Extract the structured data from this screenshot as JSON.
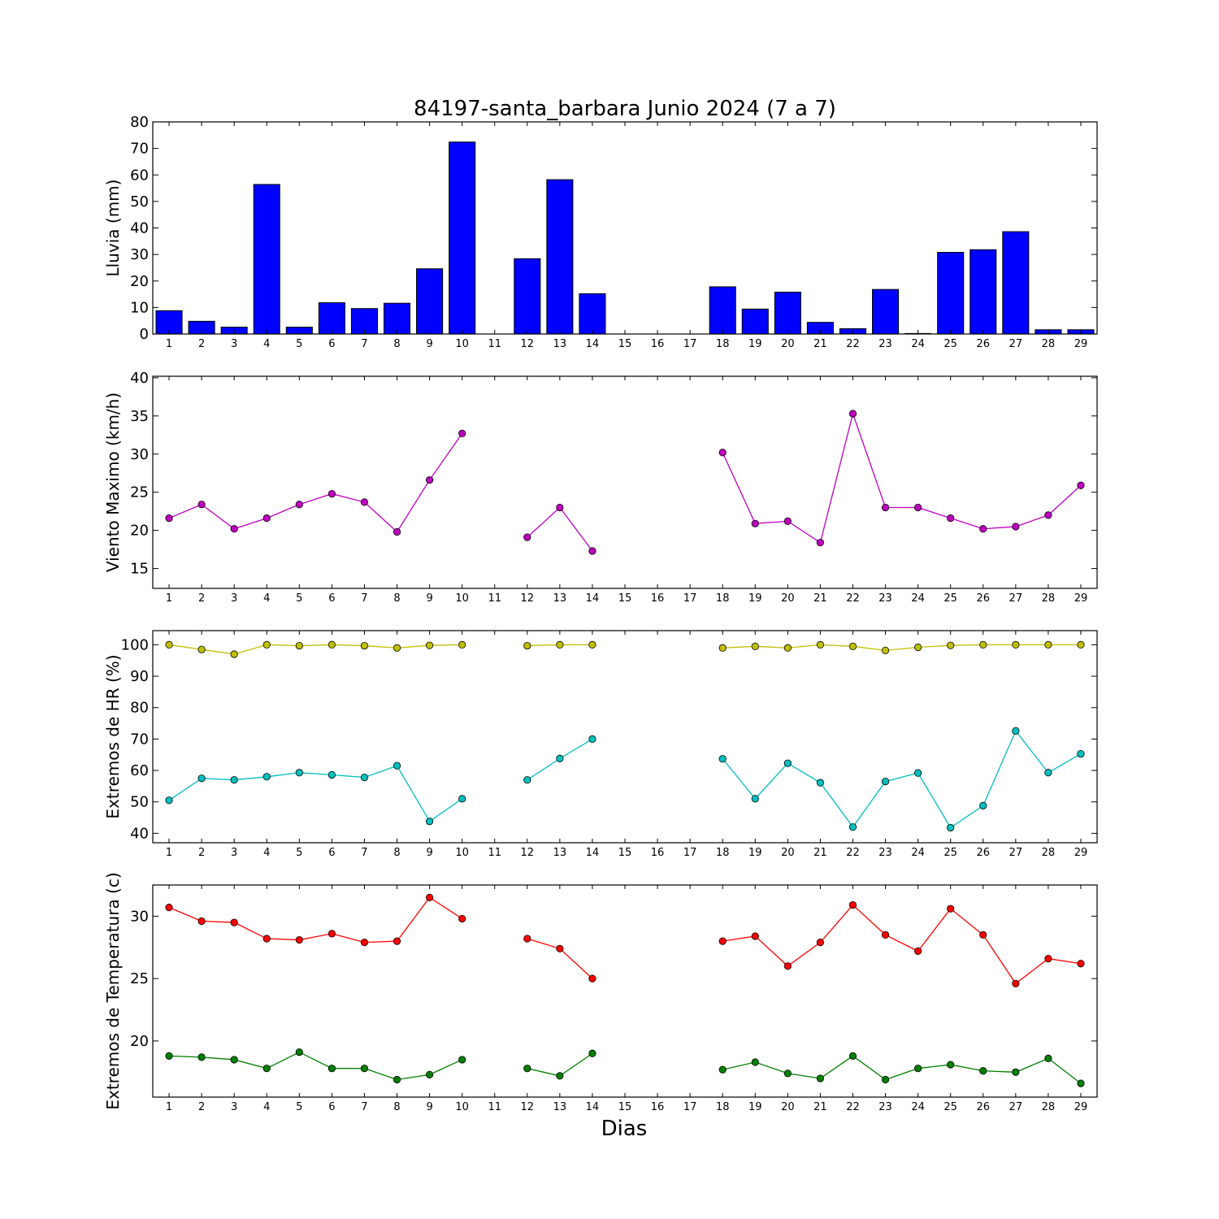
{
  "figure": {
    "title": "84197-santa_barbara Junio 2024  (7 a 7)",
    "xlabel": "Dias"
  },
  "chart_data": [
    {
      "type": "bar",
      "ylabel": "Lluvia (mm)",
      "x": [
        1,
        2,
        3,
        4,
        5,
        6,
        7,
        8,
        9,
        10,
        11,
        12,
        13,
        14,
        15,
        16,
        17,
        18,
        19,
        20,
        21,
        22,
        23,
        24,
        25,
        26,
        27,
        28,
        29
      ],
      "ylim": [
        0,
        80
      ],
      "yticks": [
        0,
        10,
        20,
        30,
        40,
        50,
        60,
        70,
        80
      ],
      "series": [
        {
          "color": "#0000ff",
          "values": [
            8.8,
            4.8,
            2.6,
            56.4,
            2.6,
            11.8,
            9.6,
            11.6,
            24.6,
            72.4,
            null,
            28.4,
            58.2,
            15.2,
            null,
            null,
            null,
            17.8,
            9.4,
            15.8,
            4.4,
            2.0,
            16.8,
            0.2,
            30.8,
            31.8,
            38.6,
            1.6,
            1.6
          ]
        }
      ]
    },
    {
      "type": "line",
      "ylabel": "Viento Maximo (km/h)",
      "x": [
        1,
        2,
        3,
        4,
        5,
        6,
        7,
        8,
        9,
        10,
        11,
        12,
        13,
        14,
        15,
        16,
        17,
        18,
        19,
        20,
        21,
        22,
        23,
        24,
        25,
        26,
        27,
        28,
        29
      ],
      "ylim": [
        12.4,
        40.2
      ],
      "yticks": [
        15,
        20,
        25,
        30,
        35,
        40
      ],
      "series": [
        {
          "color": "#bf00bf",
          "values": [
            21.6,
            23.4,
            20.2,
            21.6,
            23.4,
            24.8,
            23.7,
            19.8,
            26.6,
            32.7,
            null,
            19.1,
            23.0,
            17.3,
            null,
            null,
            null,
            30.2,
            20.9,
            21.2,
            18.4,
            35.3,
            23.0,
            23.0,
            21.6,
            20.2,
            20.5,
            22.0,
            25.9
          ]
        }
      ]
    },
    {
      "type": "line",
      "ylabel": "Extremos de HR (%)",
      "x": [
        1,
        2,
        3,
        4,
        5,
        6,
        7,
        8,
        9,
        10,
        11,
        12,
        13,
        14,
        15,
        16,
        17,
        18,
        19,
        20,
        21,
        22,
        23,
        24,
        25,
        26,
        27,
        28,
        29
      ],
      "ylim": [
        37,
        104.5
      ],
      "yticks": [
        40,
        50,
        60,
        70,
        80,
        90,
        100
      ],
      "series": [
        {
          "color": "#bfbf00",
          "values": [
            100,
            98.5,
            97,
            100,
            99.7,
            100,
            99.7,
            99,
            99.8,
            100,
            null,
            99.7,
            100,
            100,
            null,
            null,
            null,
            99,
            99.5,
            99,
            100,
            99.5,
            98.2,
            99.2,
            99.8,
            100,
            100,
            100,
            100
          ]
        },
        {
          "color": "#00bfbf",
          "values": [
            50.5,
            57.5,
            57,
            58,
            59.3,
            58.6,
            57.8,
            61.5,
            43.8,
            51,
            null,
            57,
            63.8,
            70,
            null,
            null,
            null,
            63.7,
            51,
            62.3,
            56.1,
            42,
            56.5,
            59.2,
            41.8,
            48.8,
            72.6,
            59.3,
            65.3
          ]
        }
      ]
    },
    {
      "type": "line",
      "ylabel": "Extremos de Temperatura (c)",
      "x": [
        1,
        2,
        3,
        4,
        5,
        6,
        7,
        8,
        9,
        10,
        11,
        12,
        13,
        14,
        15,
        16,
        17,
        18,
        19,
        20,
        21,
        22,
        23,
        24,
        25,
        26,
        27,
        28,
        29
      ],
      "ylim": [
        15.5,
        32.5
      ],
      "yticks": [
        20,
        25,
        30
      ],
      "series": [
        {
          "color": "#ff0000",
          "values": [
            30.7,
            29.6,
            29.5,
            28.2,
            28.1,
            28.6,
            27.9,
            28.0,
            31.5,
            29.8,
            null,
            28.2,
            27.4,
            25.0,
            null,
            null,
            null,
            28.0,
            28.4,
            26.0,
            27.9,
            30.9,
            28.5,
            27.2,
            30.6,
            28.5,
            24.6,
            26.6,
            26.2
          ]
        },
        {
          "color": "#007f00",
          "values": [
            18.8,
            18.7,
            18.5,
            17.8,
            19.1,
            17.8,
            17.8,
            16.9,
            17.3,
            18.5,
            null,
            17.8,
            17.2,
            19.0,
            null,
            null,
            null,
            17.7,
            18.3,
            17.4,
            17.0,
            18.8,
            16.9,
            17.8,
            18.1,
            17.6,
            17.5,
            18.6,
            16.6
          ]
        }
      ]
    }
  ]
}
